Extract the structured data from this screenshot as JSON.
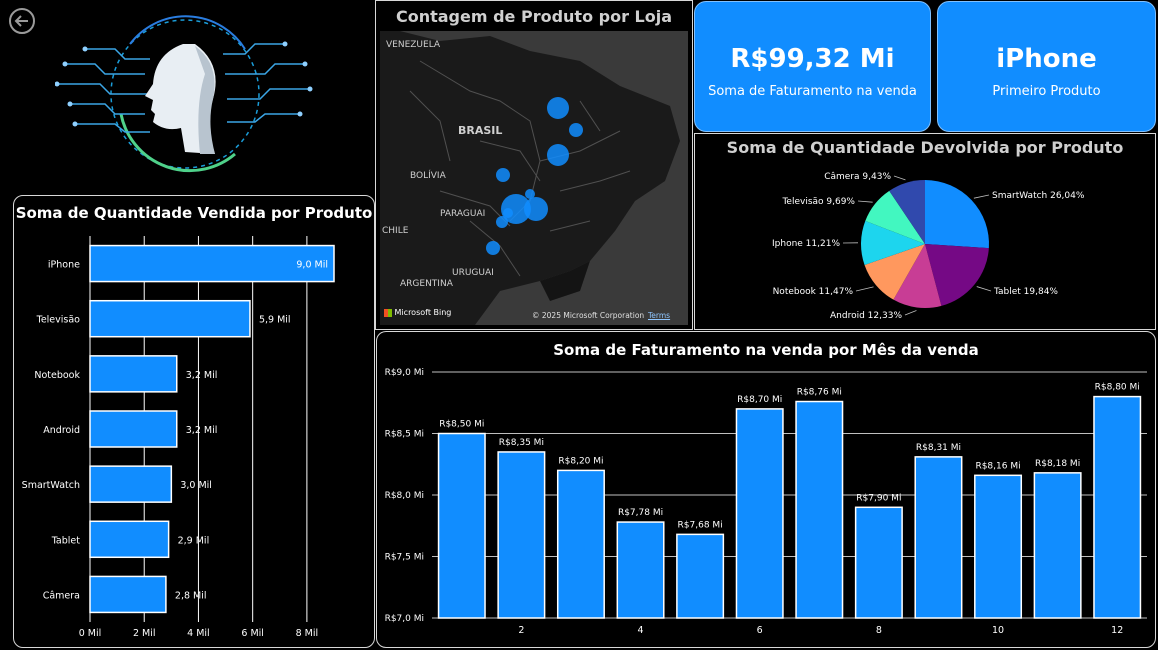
{
  "colors": {
    "accent": "#118DFF",
    "background": "#000000",
    "panel_border": "#d8d8d8"
  },
  "nav": {
    "back_icon": "back-arrow-icon"
  },
  "logo": {
    "icon": "ai-face-circuit-icon"
  },
  "map": {
    "title": "Contagem de Produto por Loja",
    "labels": [
      "VENEZUELA",
      "BRASIL",
      "BOLÍVIA",
      "PARAGUAI",
      "CHILE",
      "URUGUAI",
      "ARGENTINA"
    ],
    "bing": "Microsoft Bing",
    "copyright": "© 2025 Microsoft Corporation",
    "terms": "Terms"
  },
  "kpis": [
    {
      "value": "R$99,32 Mi",
      "label": "Soma de Faturamento na venda"
    },
    {
      "value": "iPhone",
      "label": "Primeiro Produto"
    }
  ],
  "chart_data": [
    {
      "type": "bar",
      "orientation": "horizontal",
      "title": "Soma de Quantidade Vendida por Produto",
      "categories": [
        "iPhone",
        "Televisão",
        "Notebook",
        "Android",
        "SmartWatch",
        "Tablet",
        "Câmera"
      ],
      "values": [
        9.0,
        5.9,
        3.2,
        3.2,
        3.0,
        2.9,
        2.8
      ],
      "data_labels": [
        "9,0 Mil",
        "5,9 Mil",
        "3,2 Mil",
        "3,2 Mil",
        "3,0 Mil",
        "2,9 Mil",
        "2,8 Mil"
      ],
      "xticks": [
        "0 Mil",
        "2 Mil",
        "4 Mil",
        "6 Mil",
        "8 Mil"
      ],
      "xlim": [
        0,
        9
      ],
      "unit": "Mil",
      "grid": true
    },
    {
      "type": "pie",
      "title": "Soma de Quantidade Devolvida por Produto",
      "slices": [
        {
          "label": "SmartWatch 26,04%",
          "value": 26.04,
          "color": "#118DFF"
        },
        {
          "label": "Tablet 19,84%",
          "value": 19.84,
          "color": "#750985"
        },
        {
          "label": "Android 12,33%",
          "value": 12.33,
          "color": "#C83D95"
        },
        {
          "label": "Notebook 11,47%",
          "value": 11.47,
          "color": "#FF985E"
        },
        {
          "label": "Iphone 11,21%",
          "value": 11.21,
          "color": "#1DD5EE"
        },
        {
          "label": "Televisão 9,69%",
          "value": 9.69,
          "color": "#42F7C0"
        },
        {
          "label": "Câmera 9,43%",
          "value": 9.43,
          "color": "#3049AD"
        }
      ]
    },
    {
      "type": "bar",
      "title": "Soma de Faturamento na venda por Mês da venda",
      "x": [
        1,
        2,
        3,
        4,
        5,
        6,
        7,
        8,
        9,
        10,
        11,
        12
      ],
      "values": [
        8.5,
        8.35,
        8.2,
        7.78,
        7.68,
        8.7,
        8.76,
        7.9,
        8.31,
        8.16,
        8.18,
        8.8
      ],
      "data_labels": [
        "R$8,50 Mi",
        "R$8,35 Mi",
        "R$8,20 Mi",
        "R$7,78 Mi",
        "R$7,68 Mi",
        "R$8,70 Mi",
        "R$8,76 Mi",
        "R$7,90 Mi",
        "R$8,31 Mi",
        "R$8,16 Mi",
        "R$8,18 Mi",
        "R$8,80 Mi"
      ],
      "xticks": [
        "2",
        "4",
        "6",
        "8",
        "10",
        "12"
      ],
      "yticks": [
        "R$7,0 Mi",
        "R$7,5 Mi",
        "R$8,0 Mi",
        "R$8,5 Mi",
        "R$9,0 Mi"
      ],
      "ylim": [
        7.0,
        9.0
      ],
      "grid": true
    }
  ]
}
